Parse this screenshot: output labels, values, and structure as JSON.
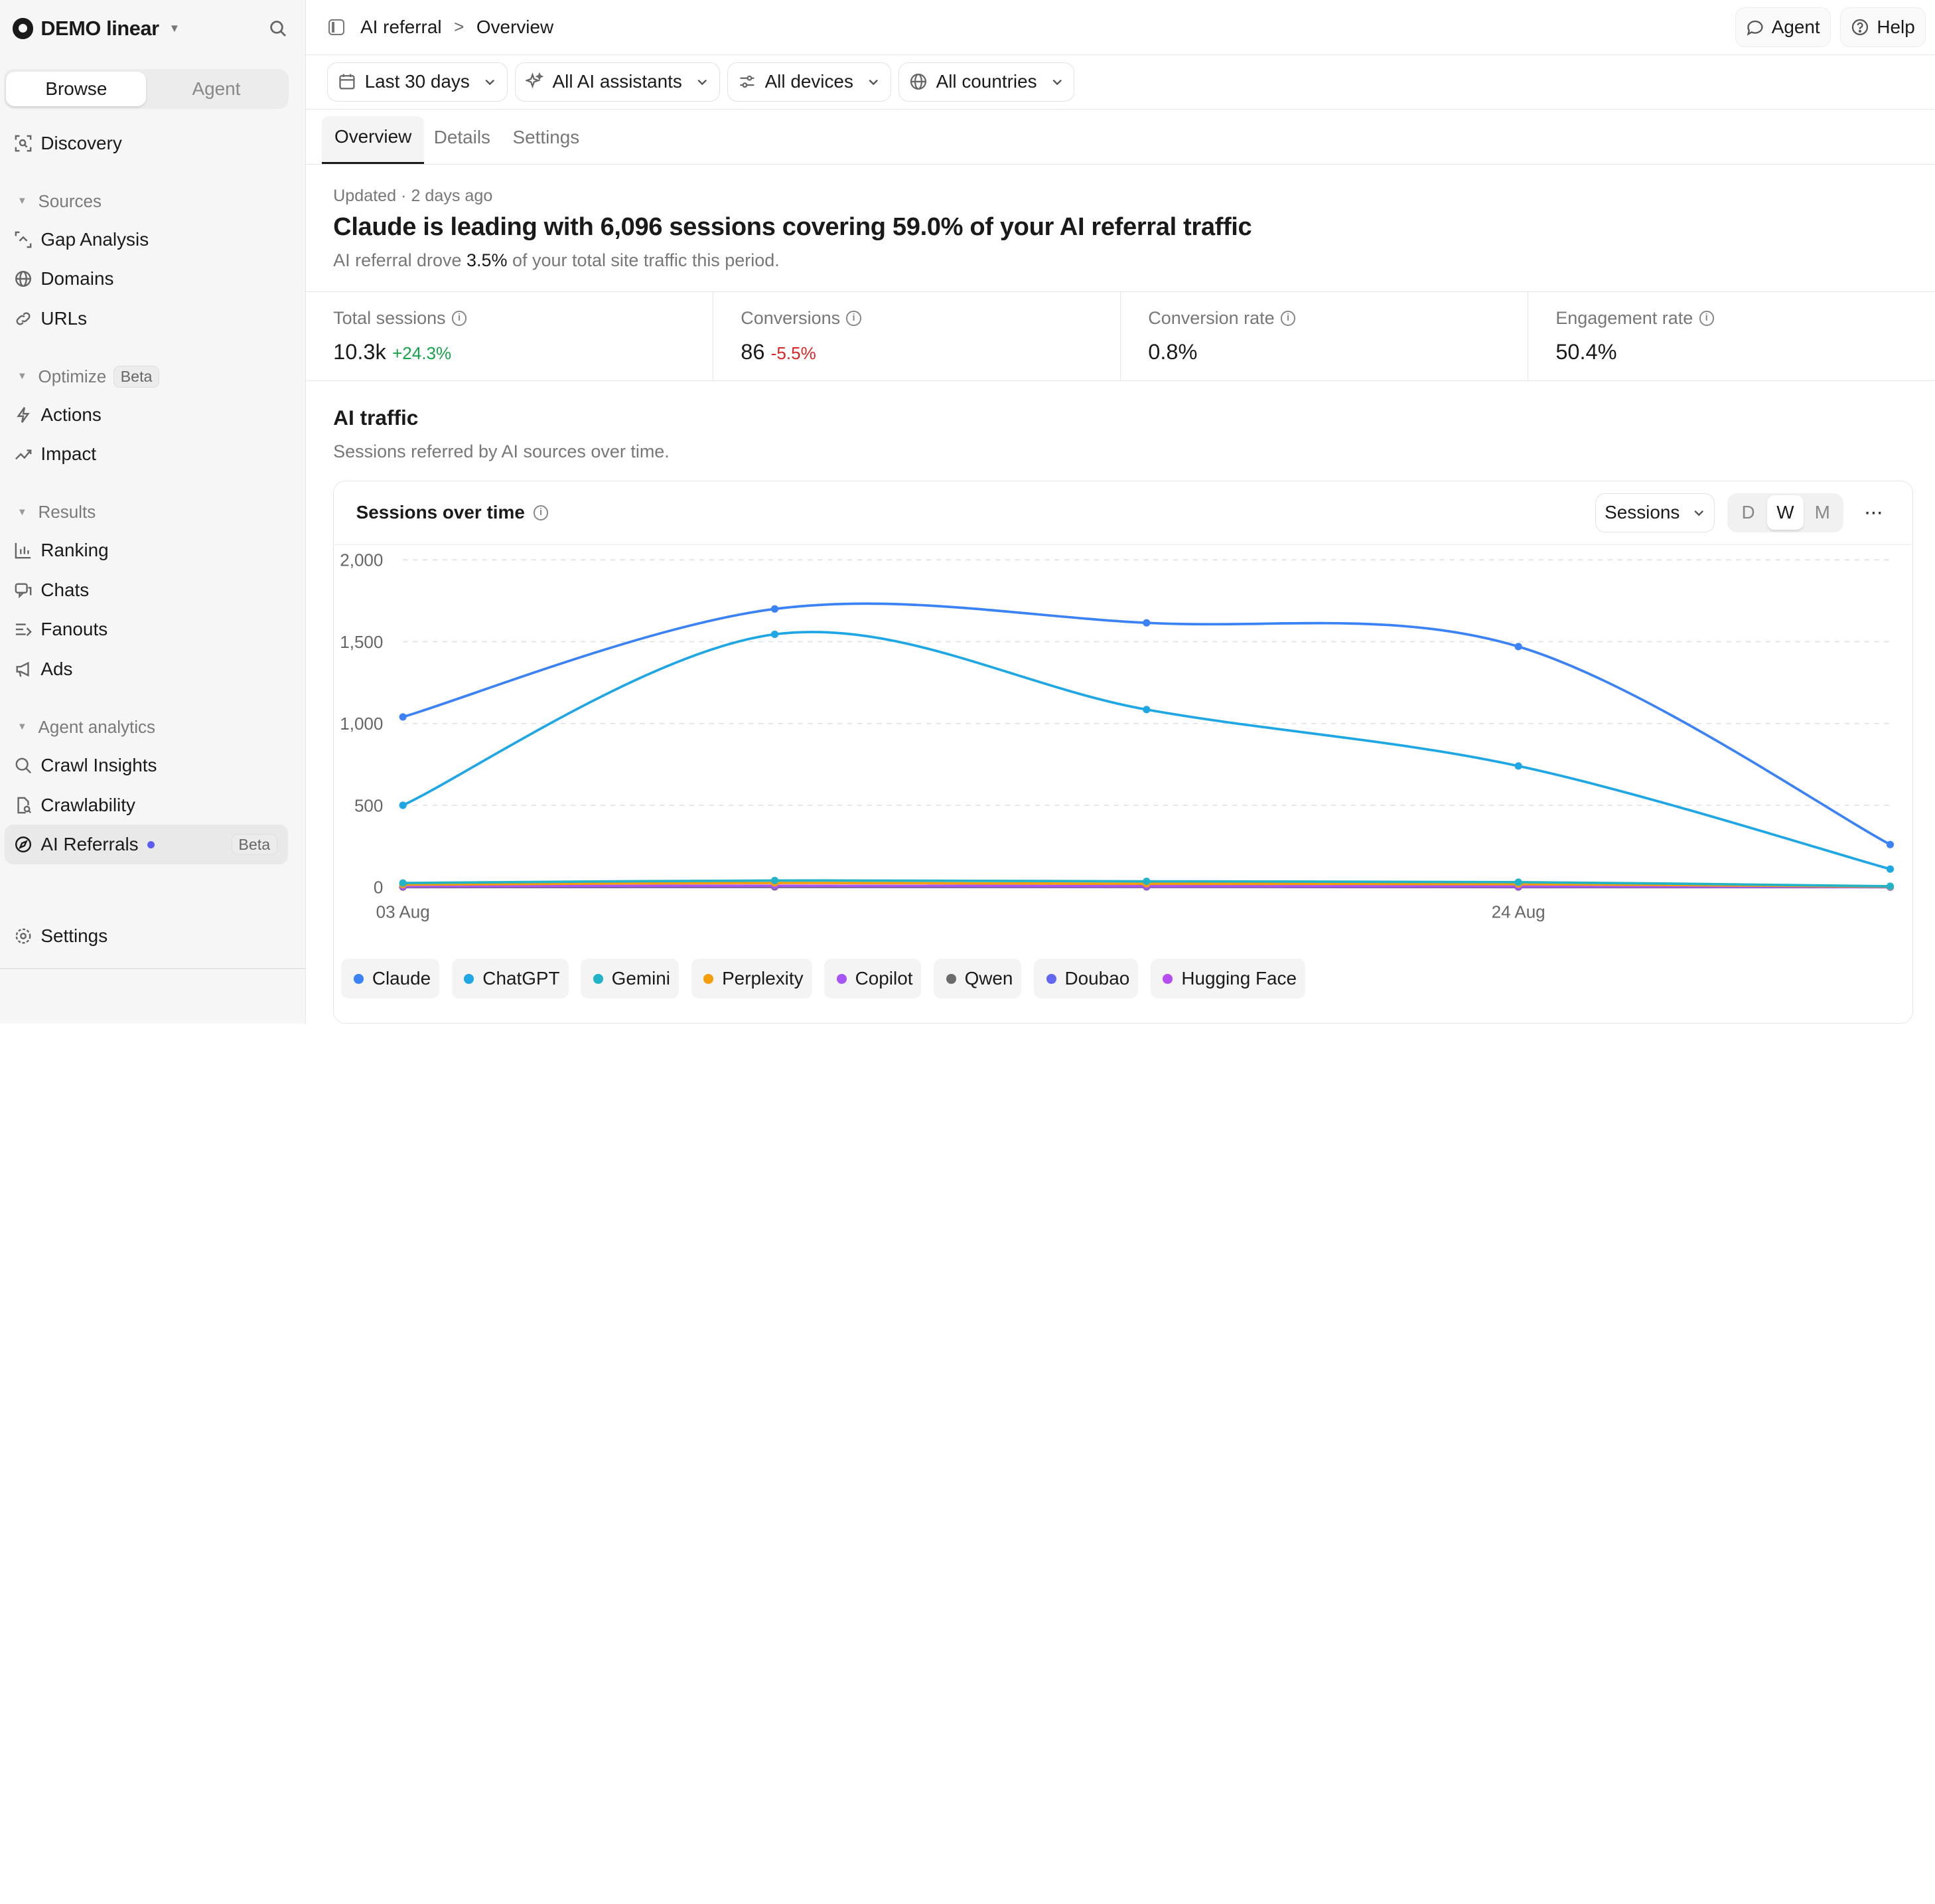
{
  "workspace": {
    "name": "DEMO linear"
  },
  "sidebar": {
    "tabs": [
      "Browse",
      "Agent"
    ],
    "top_item": "Discovery",
    "groups": [
      {
        "label": "Sources",
        "items": [
          "Gap Analysis",
          "Domains",
          "URLs"
        ]
      },
      {
        "label": "Optimize",
        "badge": "Beta",
        "items": [
          "Actions",
          "Impact"
        ]
      },
      {
        "label": "Results",
        "items": [
          "Ranking",
          "Chats",
          "Fanouts",
          "Ads"
        ]
      },
      {
        "label": "Agent analytics",
        "items": [
          "Crawl Insights",
          "Crawlability",
          "AI Referrals"
        ]
      }
    ],
    "selected_badge": "Beta",
    "settings": "Settings"
  },
  "breadcrumb": {
    "parent": "AI referral",
    "current": "Overview"
  },
  "top_actions": {
    "agent": "Agent",
    "help": "Help"
  },
  "filters": {
    "date": "Last 30 days",
    "assistants": "All AI assistants",
    "devices": "All devices",
    "countries": "All countries"
  },
  "tabs": [
    "Overview",
    "Details",
    "Settings"
  ],
  "summary": {
    "updated": "Updated",
    "updated_sep": "·",
    "updated_ago": "2 days ago",
    "headline": "Claude is leading with 6,096 sessions covering 59.0% of your AI referral traffic",
    "sub_prefix": "AI referral drove",
    "sub_value": "3.5%",
    "sub_suffix": "of your total site traffic this period."
  },
  "metrics": [
    {
      "label": "Total sessions",
      "value": "10.3k",
      "delta": "+24.3%"
    },
    {
      "label": "Conversions",
      "value": "86",
      "delta": "-5.5%"
    },
    {
      "label": "Conversion rate",
      "value": "0.8%"
    },
    {
      "label": "Engagement rate",
      "value": "50.4%"
    }
  ],
  "section": {
    "title": "AI traffic",
    "subtitle": "Sessions referred by AI sources over time."
  },
  "card": {
    "title": "Sessions over time",
    "metric_select": "Sessions",
    "granularity": [
      "D",
      "W",
      "M"
    ],
    "more": "···"
  },
  "colors": {
    "Claude": "#3b82f6",
    "ChatGPT": "#1ea7e4",
    "Gemini": "#22b3c8",
    "Perplexity": "#f59e0b",
    "Copilot": "#a855f7",
    "Qwen": "#6b6b6b",
    "Doubao": "#6366f1",
    "Hugging Face": "#b54df0"
  },
  "chart_data": {
    "type": "line",
    "title": "Sessions over time",
    "x": [
      "2025-08-03",
      "2025-08-10",
      "2025-08-17",
      "2025-08-24",
      "2025-08-31"
    ],
    "x_tick_labels": [
      {
        "x": "2025-08-03",
        "label": "03 Aug"
      },
      {
        "x": "2025-08-24",
        "label": "24 Aug"
      }
    ],
    "ylim": [
      0,
      2000
    ],
    "y_ticks": [
      0,
      500,
      1000,
      1500,
      2000
    ],
    "y_tick_labels": [
      "0",
      "500",
      "1,000",
      "1,500",
      "2,000"
    ],
    "grid": true,
    "legend": "bottom",
    "series": [
      {
        "name": "Claude",
        "values": [
          1040,
          1700,
          1615,
          1470,
          260
        ]
      },
      {
        "name": "ChatGPT",
        "values": [
          500,
          1545,
          1085,
          740,
          110
        ]
      },
      {
        "name": "Gemini",
        "values": [
          25,
          40,
          35,
          30,
          5
        ]
      },
      {
        "name": "Perplexity",
        "values": [
          15,
          25,
          20,
          18,
          3
        ]
      },
      {
        "name": "Copilot",
        "values": [
          5,
          8,
          6,
          5,
          1
        ]
      },
      {
        "name": "Qwen",
        "values": [
          2,
          3,
          3,
          2,
          0
        ]
      },
      {
        "name": "Doubao",
        "values": [
          1,
          2,
          2,
          1,
          0
        ]
      },
      {
        "name": "Hugging Face",
        "values": [
          0,
          1,
          1,
          0,
          0
        ]
      }
    ]
  }
}
